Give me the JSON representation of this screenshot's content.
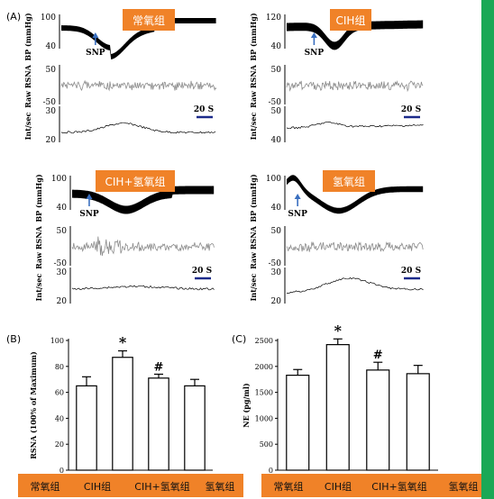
{
  "figure": {
    "panel_labels": [
      "(A)",
      "(B)",
      "(C)"
    ],
    "colors": {
      "page_border": "#1aa856",
      "panel_bg": "#ffffff",
      "tag_fill": "#f08228",
      "arrow": "#3a6fbf",
      "scale_bar": "#1b2a8a",
      "trace": "#000000",
      "rsna_trace": "#8c8c8c"
    },
    "traces": [
      {
        "group": "常氧组",
        "bp_label": "BP (mmHg)",
        "bp_ticks": [
          "100",
          "40"
        ],
        "rsna_label": "Raw RSNA",
        "rsna_ticks": [
          "50",
          "-50"
        ],
        "int_label": "Int/sec",
        "int_ticks": [
          "30",
          "20"
        ],
        "marker": "SNP",
        "scale": "20 S"
      },
      {
        "group": "CIH组",
        "bp_label": "BP (mmHg)",
        "bp_ticks": [
          "120",
          "40"
        ],
        "rsna_label": "Raw RSNA",
        "rsna_ticks": [
          "50",
          "-50"
        ],
        "int_label": "Int/sec",
        "int_ticks": [
          "50",
          "40"
        ],
        "marker": "SNP",
        "scale": "20 S"
      },
      {
        "group": "CIH+氢氧组",
        "bp_label": "BP (mmHg)",
        "bp_ticks": [
          "100",
          "40"
        ],
        "rsna_label": "Raw RSNA",
        "rsna_ticks": [
          "50",
          "-50"
        ],
        "int_label": "Int/sec",
        "int_ticks": [
          "30",
          "20"
        ],
        "marker": "SNP",
        "scale": "20 S"
      },
      {
        "group": "氢氧组",
        "bp_label": "BP (mmHg)",
        "bp_ticks": [
          "100",
          "40"
        ],
        "rsna_label": "Raw RSNA",
        "rsna_ticks": [
          "50",
          "-50"
        ],
        "int_label": "Int/sec",
        "int_ticks": [
          "30",
          "20"
        ],
        "marker": "SNP",
        "scale": "20 S"
      }
    ],
    "bottom_labels_left": [
      "常氧组",
      "CIH组",
      "CIH+氢氧组",
      "氢氧组"
    ],
    "bottom_labels_right": [
      "常氧组",
      "CIH组",
      "CIH+氢氧组",
      "氢氧组"
    ]
  },
  "chart_data": [
    {
      "type": "bar",
      "panel": "(B)",
      "ylabel": "RSNA (100% of Maximum)",
      "yticks": [
        0,
        20,
        40,
        60,
        80,
        100
      ],
      "ylim": [
        0,
        100
      ],
      "categories": [
        "常氧组",
        "CIH组",
        "CIH+氢氧组",
        "氢氧组"
      ],
      "values": [
        65,
        87,
        71,
        65
      ],
      "errors": [
        7,
        5,
        3,
        5
      ],
      "annotations": [
        "",
        "*",
        "#",
        ""
      ]
    },
    {
      "type": "bar",
      "panel": "(C)",
      "ylabel": "NE (pg/ml)",
      "yticks": [
        0,
        500,
        1000,
        1500,
        2000,
        2500
      ],
      "ylim": [
        0,
        2500
      ],
      "categories": [
        "常氧组",
        "CIH组",
        "CIH+氢氧组",
        "氢氧组"
      ],
      "values": [
        1830,
        2420,
        1930,
        1860
      ],
      "errors": [
        110,
        110,
        150,
        160
      ],
      "annotations": [
        "",
        "*",
        "#",
        ""
      ]
    }
  ]
}
